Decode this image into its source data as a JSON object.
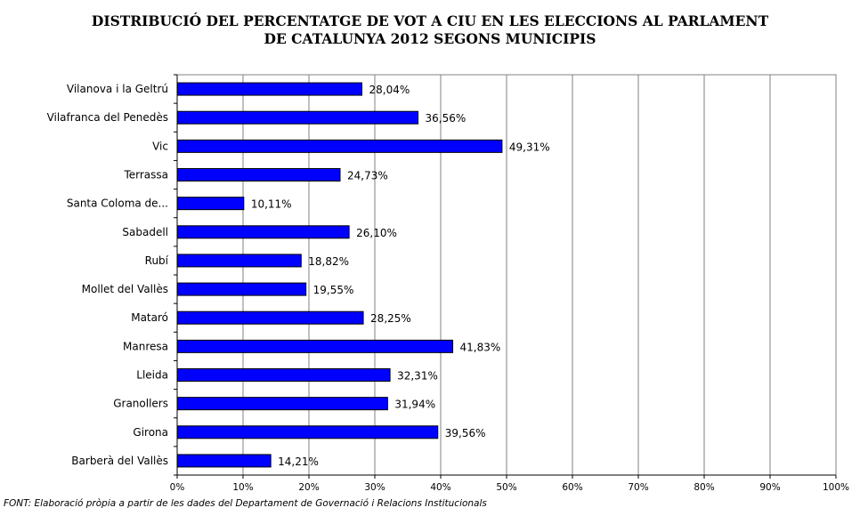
{
  "chart_data": {
    "type": "bar",
    "orientation": "horizontal",
    "title": "DISTRIBUCIÓ DEL PERCENTATGE DE VOT A CIU EN LES ELECCIONS AL PARLAMENT DE CATALUNYA 2012 SEGONS MUNICIPIS",
    "title_lines": [
      "DISTRIBUCIÓ DEL PERCENTATGE DE VOT A CIU EN LES ELECCIONS AL PARLAMENT",
      "DE CATALUNYA 2012 SEGONS MUNICIPIS"
    ],
    "categories": [
      "Vilanova i la Geltrú",
      "Vilafranca del Penedès",
      "Vic",
      "Terrassa",
      "Santa Coloma de...",
      "Sabadell",
      "Rubí",
      "Mollet del Vallès",
      "Mataró",
      "Manresa",
      "Lleida",
      "Granollers",
      "Girona",
      "Barberà del Vallès"
    ],
    "values": [
      28.04,
      36.56,
      49.31,
      24.73,
      10.11,
      26.1,
      18.82,
      19.55,
      28.25,
      41.83,
      32.31,
      31.94,
      39.56,
      14.21
    ],
    "value_labels": [
      "28,04%",
      "36,56%",
      "49,31%",
      "24,73%",
      "10,11%",
      "26,10%",
      "18,82%",
      "19,55%",
      "28,25%",
      "41,83%",
      "32,31%",
      "31,94%",
      "39,56%",
      "14,21%"
    ],
    "xlim": [
      0,
      100
    ],
    "x_ticks": [
      "0%",
      "10%",
      "20%",
      "30%",
      "40%",
      "50%",
      "60%",
      "70%",
      "80%",
      "90%",
      "100%"
    ],
    "grid": true,
    "legend": "none",
    "bar_color": "#0000ff",
    "bar_edge_color": "#000000",
    "grid_color": "#808080"
  },
  "source": "FONT: Elaboració pròpia a partir de les dades del Departament de Governació i Relacions Institucionals"
}
